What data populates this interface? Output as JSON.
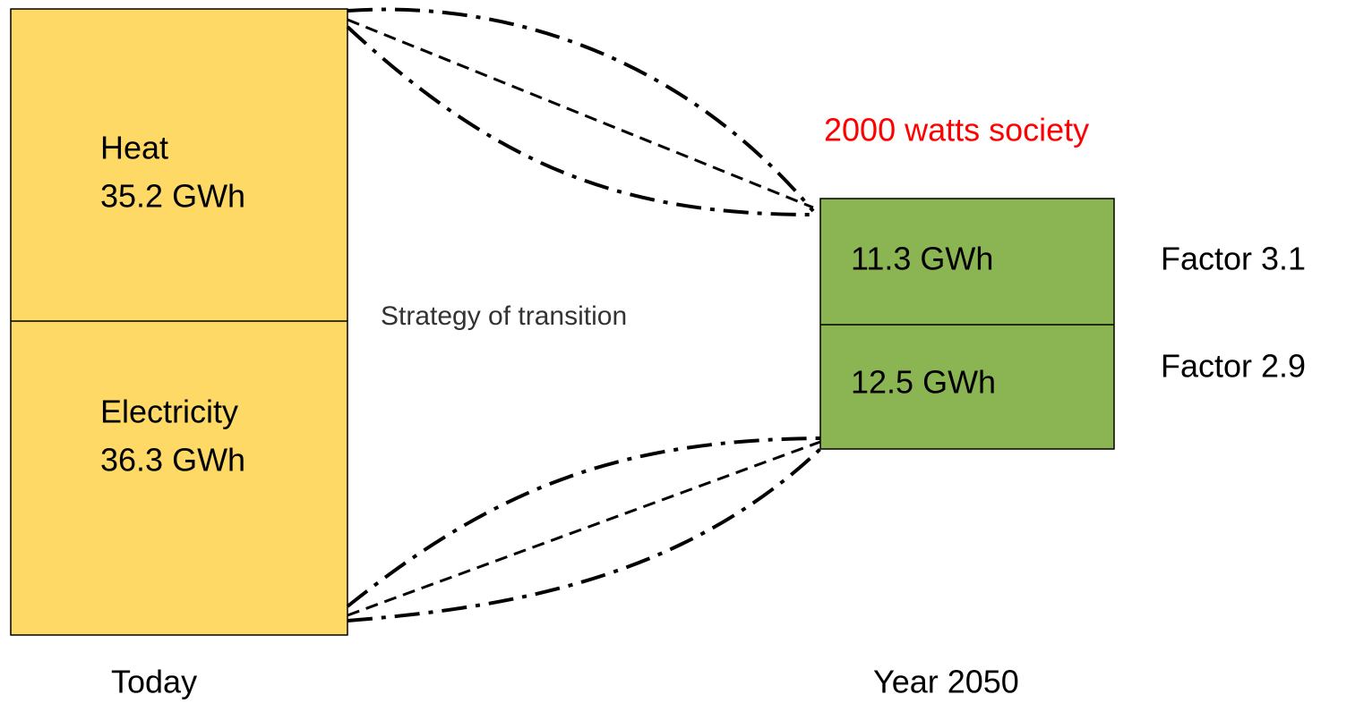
{
  "today": {
    "heat": {
      "label": "Heat",
      "amount": "35.2 GWh"
    },
    "electricity": {
      "label": "Electricity",
      "amount": "36.3 GWh"
    },
    "caption": "Today"
  },
  "transition": "Strategy of transition",
  "target": {
    "title": "2000 watts society",
    "heat": {
      "amount": "11.3 GWh",
      "factor": "Factor 3.1"
    },
    "electricity": {
      "amount": "12.5 GWh",
      "factor": "Factor 2.9"
    },
    "caption": "Year 2050"
  }
}
